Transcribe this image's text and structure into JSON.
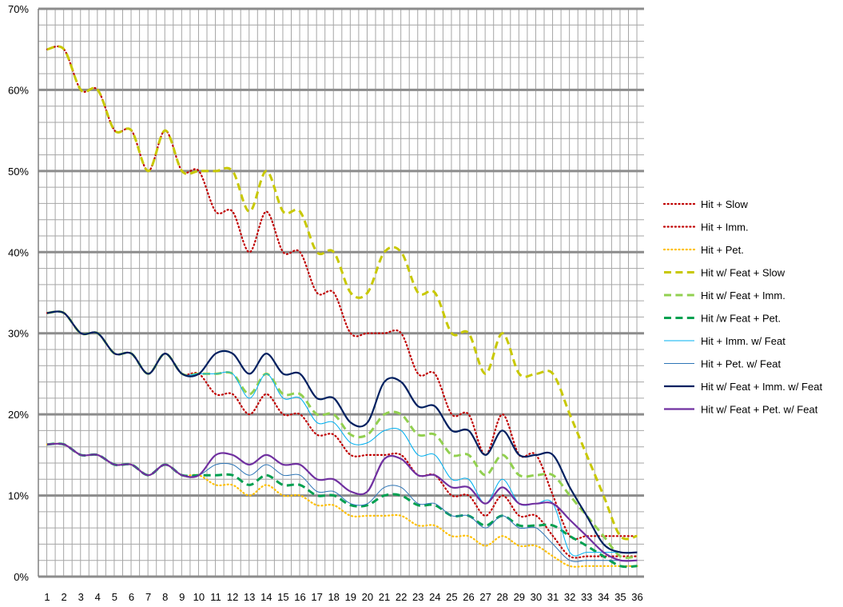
{
  "chart_data": {
    "type": "line",
    "title": "",
    "xlabel": "",
    "ylabel": "",
    "x": [
      1,
      2,
      3,
      4,
      5,
      6,
      7,
      8,
      9,
      10,
      11,
      12,
      13,
      14,
      15,
      16,
      17,
      18,
      19,
      20,
      21,
      22,
      23,
      24,
      25,
      26,
      27,
      28,
      29,
      30,
      31,
      32,
      33,
      34,
      35,
      36
    ],
    "x_tick_labels": [
      "1",
      "2",
      "3",
      "4",
      "5",
      "6",
      "7",
      "8",
      "9",
      "10",
      "11",
      "12",
      "13",
      "14",
      "15",
      "16",
      "17",
      "18",
      "19",
      "20",
      "21",
      "22",
      "23",
      "24",
      "25",
      "26",
      "27",
      "28",
      "29",
      "30",
      "31",
      "32",
      "33",
      "34",
      "35",
      "36"
    ],
    "ylim": [
      0,
      70
    ],
    "y_ticks": [
      0,
      10,
      20,
      30,
      40,
      50,
      60,
      70
    ],
    "y_tick_labels": [
      "0%",
      "10%",
      "20%",
      "30%",
      "40%",
      "50%",
      "60%",
      "70%"
    ],
    "grid": true,
    "legend_position": "right",
    "series": [
      {
        "name": "Hit + Slow",
        "color": "#c00000",
        "style": "dotted",
        "width": 2.2,
        "values": [
          32.5,
          32.5,
          30,
          30,
          27.5,
          27.5,
          25,
          27.5,
          25,
          25,
          22.5,
          22.5,
          20,
          22.5,
          20,
          20,
          17.5,
          17.5,
          15,
          15,
          15,
          15,
          12.5,
          12.5,
          10,
          10,
          7.5,
          10,
          7.5,
          7.5,
          5,
          2.5,
          2.5,
          2.5,
          2.5,
          2.5
        ]
      },
      {
        "name": "Hit + Imm.",
        "color": "#c00000",
        "style": "dotted",
        "width": 2.2,
        "values": [
          65,
          65,
          60,
          60,
          55,
          55,
          50,
          55,
          50,
          50,
          45,
          45,
          40,
          45,
          40,
          40,
          35,
          35,
          30,
          30,
          30,
          30,
          25,
          25,
          20,
          20,
          15,
          20,
          15,
          15,
          10,
          5,
          5,
          5,
          5,
          5
        ]
      },
      {
        "name": "Hit + Pet.",
        "color": "#ffc000",
        "style": "dotted",
        "width": 2.2,
        "values": [
          16.3,
          16.3,
          15,
          15,
          13.8,
          13.8,
          12.5,
          13.8,
          12.5,
          12.5,
          11.3,
          11.3,
          10,
          11.3,
          10,
          10,
          8.8,
          8.8,
          7.5,
          7.5,
          7.5,
          7.5,
          6.3,
          6.3,
          5,
          5,
          3.8,
          5,
          3.8,
          3.8,
          2.5,
          1.3,
          1.3,
          1.3,
          1.3,
          1.3
        ]
      },
      {
        "name": "Hit w/ Feat + Slow",
        "color": "#c8c800",
        "style": "dashed",
        "width": 3,
        "values": [
          65,
          65,
          60,
          60,
          55,
          55,
          50,
          55,
          50,
          50,
          50,
          50,
          45,
          50,
          45,
          45,
          40,
          40,
          35,
          35,
          40,
          40,
          35,
          35,
          30,
          30,
          25,
          30,
          25,
          25,
          25,
          20,
          15,
          10,
          5,
          5
        ]
      },
      {
        "name": "Hit w/ Feat + Imm.",
        "color": "#92d050",
        "style": "dashed",
        "width": 3,
        "values": [
          32.5,
          32.5,
          30,
          30,
          27.5,
          27.5,
          25,
          27.5,
          25,
          25,
          25,
          25,
          22.5,
          25,
          22.5,
          22.5,
          20,
          20,
          17.5,
          17.5,
          20,
          20,
          17.5,
          17.5,
          15,
          15,
          12.5,
          15,
          12.5,
          12.5,
          12.5,
          10,
          7.5,
          5,
          2.5,
          2.5
        ]
      },
      {
        "name": "Hit /w Feat + Pet.",
        "color": "#00a050",
        "style": "dashed",
        "width": 3,
        "values": [
          16.3,
          16.3,
          15,
          15,
          13.8,
          13.8,
          12.5,
          13.8,
          12.5,
          12.5,
          12.5,
          12.5,
          11.3,
          12.5,
          11.3,
          11.3,
          10,
          10,
          8.8,
          8.8,
          10,
          10,
          8.8,
          8.8,
          7.5,
          7.5,
          6.3,
          7.5,
          6.3,
          6.3,
          6.3,
          5,
          3.8,
          2.5,
          1.3,
          1.3
        ]
      },
      {
        "name": "Hit + Imm. w/ Feat",
        "color": "#00b0f0",
        "style": "solid",
        "width": 1,
        "values": [
          32.5,
          32.5,
          30,
          30,
          27.5,
          27.5,
          25,
          27.5,
          25,
          25,
          25,
          25,
          22,
          25,
          22,
          22,
          19,
          19,
          16.5,
          16.5,
          18,
          18,
          15,
          15,
          12,
          12,
          9,
          12,
          9,
          9,
          9,
          3,
          3,
          3,
          3,
          3
        ]
      },
      {
        "name": "Hit + Pet. w/ Feat",
        "color": "#2e75b6",
        "style": "solid",
        "width": 1,
        "values": [
          16.3,
          16.3,
          15,
          15,
          13.8,
          13.8,
          12.5,
          13.8,
          12.5,
          12.5,
          13.8,
          13.8,
          12.5,
          13.8,
          12.5,
          12.5,
          10.5,
          10.5,
          9,
          9,
          11,
          11,
          9,
          9,
          7.5,
          7.5,
          6,
          7.5,
          6,
          6,
          4,
          2,
          2,
          2,
          2,
          2
        ]
      },
      {
        "name": "Hit w/ Feat + Imm. w/ Feat",
        "color": "#002060",
        "style": "solid",
        "width": 2.2,
        "values": [
          32.5,
          32.5,
          30,
          30,
          27.5,
          27.5,
          25,
          27.5,
          25,
          25,
          27.5,
          27.5,
          25,
          27.5,
          25,
          25,
          22,
          22,
          19,
          19,
          24,
          24,
          21,
          21,
          18,
          18,
          15,
          18,
          15,
          15,
          15,
          11,
          7.5,
          4,
          3,
          3
        ]
      },
      {
        "name": "Hit w/ Feat + Pet. w/ Feat",
        "color": "#7030a0",
        "style": "solid",
        "width": 2.2,
        "values": [
          16.3,
          16.3,
          15,
          15,
          13.8,
          13.8,
          12.5,
          13.8,
          12.5,
          12.5,
          15,
          15,
          13.8,
          15,
          13.8,
          13.8,
          12,
          12,
          10.5,
          10.5,
          14.5,
          14.5,
          12.5,
          12.5,
          11,
          11,
          9,
          11,
          9,
          9,
          9,
          7,
          5,
          3,
          2,
          2
        ]
      }
    ]
  }
}
